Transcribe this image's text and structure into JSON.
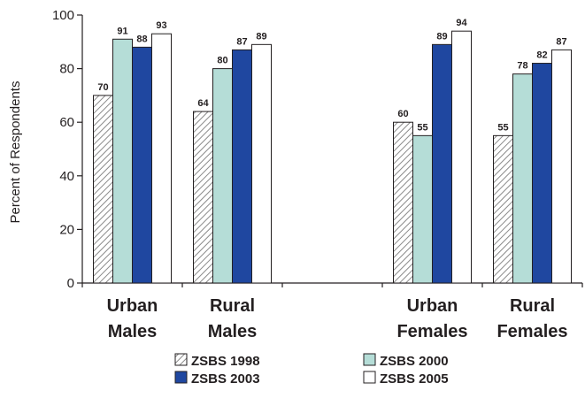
{
  "chart_data": {
    "type": "bar",
    "ylabel": "Percent of Respondents",
    "xlabel": "",
    "ylim": [
      0,
      100
    ],
    "yticks": [
      0,
      20,
      40,
      60,
      80,
      100
    ],
    "groups": [
      {
        "label_lines": [
          "Urban",
          "Males"
        ]
      },
      {
        "label_lines": [
          "Rural",
          "Males"
        ]
      },
      {
        "label_lines": [
          "",
          ""
        ]
      },
      {
        "label_lines": [
          "Urban",
          "Females"
        ]
      },
      {
        "label_lines": [
          "Rural",
          "Females"
        ]
      }
    ],
    "series": [
      {
        "name": "ZSBS 1998",
        "values": [
          70,
          64,
          null,
          60,
          55
        ],
        "color": "#d9d9d9",
        "pattern": "hatch"
      },
      {
        "name": "ZSBS 2000",
        "values": [
          91,
          80,
          null,
          55,
          78
        ],
        "color": "#b5ddd7",
        "pattern": "solid"
      },
      {
        "name": "ZSBS 2003",
        "values": [
          88,
          87,
          null,
          89,
          82
        ],
        "color": "#1f47a0",
        "pattern": "solid"
      },
      {
        "name": "ZSBS 2005",
        "values": [
          93,
          89,
          null,
          94,
          87
        ],
        "color": "#ffffff",
        "pattern": "solid"
      }
    ],
    "grid": false,
    "legend_position": "bottom"
  }
}
